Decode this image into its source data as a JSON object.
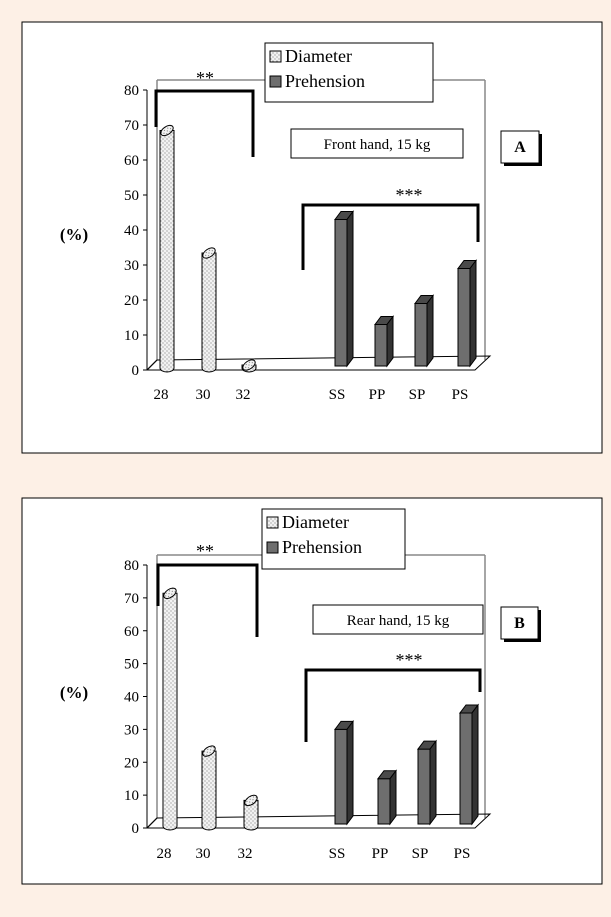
{
  "colors": {
    "page_bg": "#fdf0e6",
    "panel_bg": "#ffffff",
    "diameter_fill": "#f2f2f2",
    "prehension_fill": "#6e6e6e",
    "axis": "#888888"
  },
  "chart_data": [
    {
      "type": "bar",
      "panel_label": "A",
      "title": "Front hand, 15 kg",
      "ylabel": "(%)",
      "ylim": [
        0,
        80
      ],
      "yticks": [
        "0",
        "10",
        "20",
        "30",
        "40",
        "50",
        "60",
        "70",
        "80"
      ],
      "legend": {
        "position": "top-center",
        "entries": [
          "Diameter",
          "Prehension"
        ]
      },
      "series": [
        {
          "name": "Diameter",
          "categories": [
            "28",
            "30",
            "32"
          ],
          "values": [
            69,
            34,
            2
          ]
        },
        {
          "name": "Prehension",
          "categories": [
            "SS",
            "PP",
            "SP",
            "PS"
          ],
          "values": [
            43,
            13,
            19,
            29
          ]
        }
      ],
      "annotations": [
        "**",
        "***"
      ]
    },
    {
      "type": "bar",
      "panel_label": "B",
      "title": "Rear hand, 15 kg",
      "ylabel": "(%)",
      "ylim": [
        0,
        80
      ],
      "yticks": [
        "0",
        "10",
        "20",
        "30",
        "40",
        "50",
        "60",
        "70",
        "80"
      ],
      "legend": {
        "position": "top-center",
        "entries": [
          "Diameter",
          "Prehension"
        ]
      },
      "series": [
        {
          "name": "Diameter",
          "categories": [
            "28",
            "30",
            "32"
          ],
          "values": [
            72,
            24,
            9
          ]
        },
        {
          "name": "Prehension",
          "categories": [
            "SS",
            "PP",
            "SP",
            "PS"
          ],
          "values": [
            30,
            15,
            24,
            35
          ]
        }
      ],
      "annotations": [
        "**",
        "***"
      ]
    }
  ]
}
